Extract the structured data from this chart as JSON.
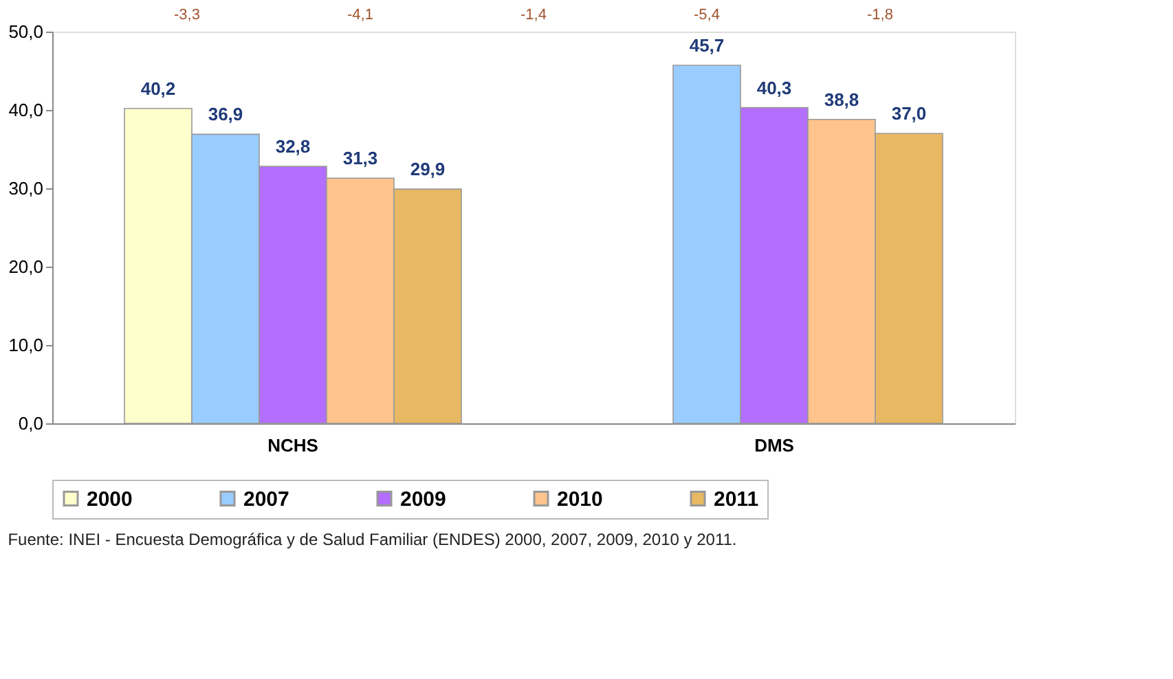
{
  "chart_data": {
    "type": "bar",
    "categories": [
      "NCHS",
      "DMS"
    ],
    "series": [
      {
        "name": "2000",
        "color": "#ffffcc",
        "values": [
          40.2,
          null
        ],
        "value_labels": [
          "40,2",
          null
        ]
      },
      {
        "name": "2007",
        "color": "#99ccff",
        "values": [
          36.9,
          45.7
        ],
        "value_labels": [
          "36,9",
          "45,7"
        ]
      },
      {
        "name": "2009",
        "color": "#b36eff",
        "values": [
          32.8,
          40.3
        ],
        "value_labels": [
          "32,8",
          "40,3"
        ]
      },
      {
        "name": "2010",
        "color": "#ffc48c",
        "values": [
          31.3,
          38.8
        ],
        "value_labels": [
          "31,3",
          "38,8"
        ]
      },
      {
        "name": "2011",
        "color": "#e8b862",
        "values": [
          29.9,
          37.0
        ],
        "value_labels": [
          "29,9",
          "37,0"
        ]
      }
    ],
    "ylim": [
      0,
      50
    ],
    "yticks": [
      {
        "value": 0,
        "label": "0,0"
      },
      {
        "value": 10,
        "label": "10,0"
      },
      {
        "value": 20,
        "label": "20,0"
      },
      {
        "value": 30,
        "label": "30,0"
      },
      {
        "value": 40,
        "label": "40,0"
      },
      {
        "value": 50,
        "label": "50,0"
      }
    ],
    "grid": false,
    "legend": "bottom",
    "annotations": [
      "-3,3",
      "-4,1",
      "-1,4",
      "-5,4",
      "-1,8",
      "Fuente: INEI - Encuesta Demográfica y de Salud Familiar (ENDES) 2000, 2007, 2009, 2010 y 2011."
    ]
  }
}
